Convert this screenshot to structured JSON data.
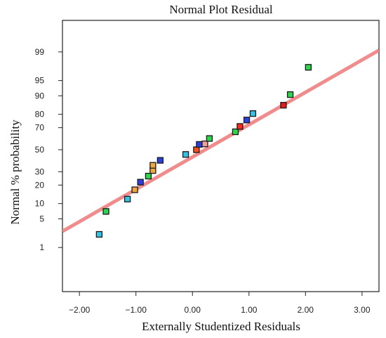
{
  "chart_data": {
    "type": "scatter",
    "title": "Normal Plot Residual",
    "xlabel": "Externally Studentized Residuals",
    "ylabel": "Normal % probability",
    "xlim": [
      -2.3,
      3.3
    ],
    "x_ticks": [
      -2.0,
      -1.0,
      0.0,
      1.0,
      2.0,
      3.0
    ],
    "x_tick_labels": [
      "−2.00",
      "−1.00",
      "0.00",
      "1.00",
      "2.00",
      "3.00"
    ],
    "y_ticks": [
      1,
      5,
      10,
      20,
      30,
      50,
      70,
      80,
      90,
      95,
      99
    ],
    "y_tick_labels": [
      "1",
      "5",
      "10",
      "20",
      "30",
      "50",
      "70",
      "80",
      "90",
      "95",
      "99"
    ],
    "y_scale": "normal-probability",
    "grid": false,
    "reference_line": {
      "x": [
        -2.3,
        3.3
      ],
      "y": [
        2.6,
        99.1
      ],
      "color": "#f28b8b"
    },
    "points": [
      {
        "x": -1.65,
        "y": 2.2,
        "color": "#31c5e8"
      },
      {
        "x": -1.53,
        "y": 7.1,
        "color": "#27d94b"
      },
      {
        "x": -1.15,
        "y": 12.0,
        "color": "#31c5e8"
      },
      {
        "x": -1.02,
        "y": 17.0,
        "color": "#f0a83a"
      },
      {
        "x": -0.92,
        "y": 22.0,
        "color": "#2b3fe8"
      },
      {
        "x": -0.78,
        "y": 26.5,
        "color": "#27d94b"
      },
      {
        "x": -0.7,
        "y": 31.0,
        "color": "#f0a83a"
      },
      {
        "x": -0.7,
        "y": 35.5,
        "color": "#f0a83a"
      },
      {
        "x": -0.57,
        "y": 40.0,
        "color": "#2b3fe8"
      },
      {
        "x": -0.12,
        "y": 45.5,
        "color": "#31c5e8"
      },
      {
        "x": 0.07,
        "y": 50.0,
        "color": "#ff4a1a"
      },
      {
        "x": 0.12,
        "y": 55.0,
        "color": "#2b3fe8"
      },
      {
        "x": 0.22,
        "y": 55.5,
        "color": "#f6a09a"
      },
      {
        "x": 0.3,
        "y": 60.5,
        "color": "#27d94b"
      },
      {
        "x": 0.76,
        "y": 66.5,
        "color": "#27d94b"
      },
      {
        "x": 0.84,
        "y": 71.0,
        "color": "#ff2a1a"
      },
      {
        "x": 0.96,
        "y": 76.0,
        "color": "#2b3fe8"
      },
      {
        "x": 1.07,
        "y": 80.5,
        "color": "#31c5e8"
      },
      {
        "x": 1.61,
        "y": 85.5,
        "color": "#e81a1a"
      },
      {
        "x": 1.73,
        "y": 90.5,
        "color": "#27d94b"
      },
      {
        "x": 2.05,
        "y": 97.5,
        "color": "#27d94b"
      }
    ]
  }
}
